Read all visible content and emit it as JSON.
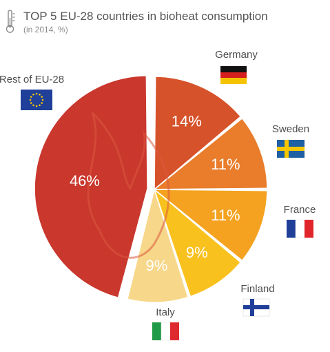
{
  "header": {
    "title": "TOP 5 EU-28 countries in bioheat consumption",
    "subtitle": "(in 2014, %)",
    "icon": "thermometer-icon"
  },
  "chart_data": {
    "type": "pie",
    "title": "TOP 5 EU-28 countries in bioheat consumption",
    "subtitle": "(in 2014, %)",
    "categories": [
      "Germany",
      "Sweden",
      "France",
      "Finland",
      "Italy",
      "Rest of EU-28"
    ],
    "values": [
      14,
      11,
      11,
      9,
      9,
      46
    ],
    "value_labels": [
      "14%",
      "11%",
      "11%",
      "9%",
      "9%",
      "46%"
    ],
    "colors": [
      "#d6522a",
      "#e97d2b",
      "#f4a21f",
      "#f9c11e",
      "#f7d78a",
      "#c9372d"
    ],
    "start_angle_deg": 0,
    "direction": "clockwise",
    "exploded": [
      "Rest of EU-28"
    ],
    "flags": [
      "germany-flag-icon",
      "sweden-flag-icon",
      "france-flag-icon",
      "finland-flag-icon",
      "italy-flag-icon",
      "eu-flag-icon"
    ],
    "legend": "none"
  }
}
